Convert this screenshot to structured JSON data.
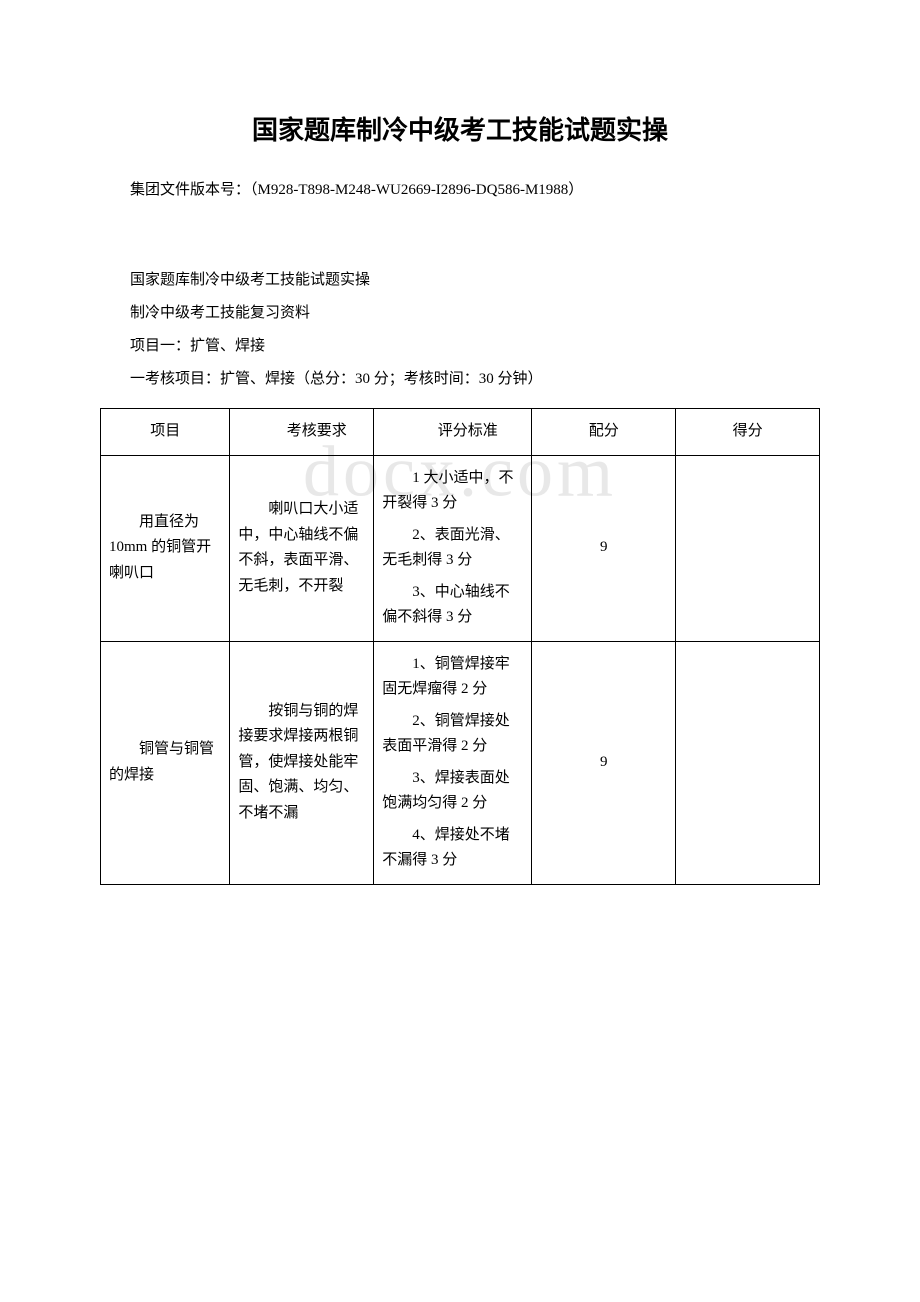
{
  "watermark": "docx.com",
  "title": "国家题库制冷中级考工技能试题实操",
  "doc_version": "集团文件版本号：（M928-T898-M248-WU2669-I2896-DQ586-M1988）",
  "line1": "国家题库制冷中级考工技能试题实操",
  "line2": "制冷中级考工技能复习资料",
  "line3": "项目一：扩管、焊接",
  "line4": "一考核项目：扩管、焊接（总分：30 分；考核时间：30 分钟）",
  "table": {
    "header": {
      "c1": "项目",
      "c2": "考核要求",
      "c3": "评分标准",
      "c4": "配分",
      "c5": "得分"
    },
    "rows": [
      {
        "c1": "用直径为 10mm 的铜管开喇叭口",
        "c2": "喇叭口大小适中，中心轴线不偏不斜，表面平滑、无毛刺，不开裂",
        "c3": [
          "1 大小适中，不开裂得 3 分",
          "2、表面光滑、无毛刺得 3 分",
          "3、中心轴线不偏不斜得 3 分"
        ],
        "c4": "9",
        "c5": ""
      },
      {
        "c1": "铜管与铜管的焊接",
        "c2": "按铜与铜的焊接要求焊接两根铜管，使焊接处能牢固、饱满、均匀、不堵不漏",
        "c3": [
          "1、铜管焊接牢固无焊瘤得 2 分",
          "2、铜管焊接处表面平滑得 2 分",
          "3、焊接表面处饱满均匀得 2 分",
          "4、焊接处不堵不漏得 3 分"
        ],
        "c4": "9",
        "c5": ""
      }
    ]
  }
}
